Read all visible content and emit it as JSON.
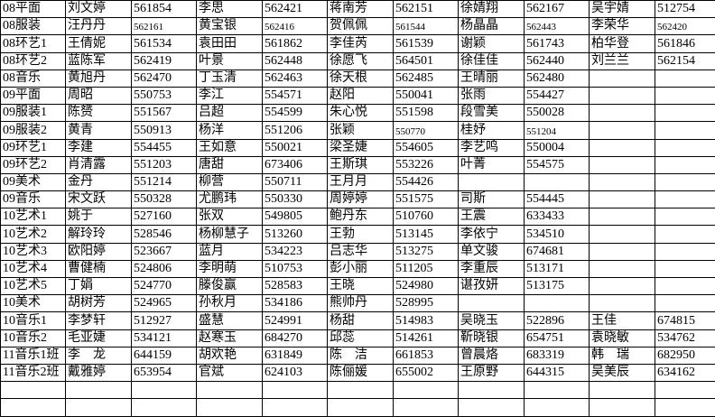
{
  "colors": {
    "grid_line": "#000000",
    "cell_background": "#ffffff",
    "text": "#000000"
  },
  "table": {
    "rows": [
      [
        "08平面",
        "刘文婷",
        "561854",
        "李思",
        "562421",
        "蒋南芳",
        "562151",
        "徐婧翔",
        "562167",
        "吴宇婧",
        "512754"
      ],
      [
        "08服装",
        "汪丹丹",
        "562161",
        "黄宝银",
        "562416",
        "贺佩佩",
        "561544",
        "杨晶晶",
        "562443",
        "李荣华",
        "562420"
      ],
      [
        "08环艺1",
        "王倩妮",
        "561534",
        "袁田田",
        "561862",
        "李佳芮",
        "561539",
        "谢颖",
        "561743",
        "柏华登",
        "561846"
      ],
      [
        "08环艺2",
        "蓝陈军",
        "562419",
        "叶景",
        "562448",
        "徐愿飞",
        "564501",
        "徐佳佳",
        "562440",
        "刘兰兰",
        "562154"
      ],
      [
        "08音乐",
        "黄旭丹",
        "562470",
        "丁玉清",
        "562463",
        "徐天根",
        "562485",
        "王晴丽",
        "562480",
        "",
        ""
      ],
      [
        "09平面",
        "周昭",
        "550753",
        "李江",
        "554571",
        "赵阳",
        "550041",
        "张雨",
        "554427",
        "",
        ""
      ],
      [
        "09服装1",
        "陈赟",
        "551567",
        "吕超",
        "554599",
        "朱心悦",
        "551598",
        "段雪美",
        "550028",
        "",
        ""
      ],
      [
        "09服装2",
        "黄青",
        "550913",
        "杨洋",
        "551206",
        "张颖",
        "550770",
        "桂妤",
        "551204",
        "",
        ""
      ],
      [
        "09环艺1",
        "李建",
        "554455",
        "王如意",
        "550021",
        "梁圣婕",
        "554605",
        "李艺鸣",
        "550004",
        "",
        ""
      ],
      [
        "09环艺2",
        "肖清露",
        "551203",
        "唐甜",
        "673406",
        "王斯琪",
        "553226",
        "叶菁",
        "554575",
        "",
        ""
      ],
      [
        "09美术",
        "金丹",
        "551214",
        "柳营",
        "550711",
        "王月月",
        "554426",
        "",
        "",
        "",
        ""
      ],
      [
        "09音乐",
        "宋文跃",
        "550328",
        "尤鹏玮",
        "550330",
        "周婷婷",
        "551575",
        "司斯",
        "554445",
        "",
        ""
      ],
      [
        "10艺术1",
        "姚于",
        "527160",
        "张双",
        "549805",
        "鲍丹东",
        "510760",
        "王震",
        "633433",
        "",
        ""
      ],
      [
        "10艺术2",
        "解玲玲",
        "528546",
        "杨柳慧子",
        "513260",
        "王勃",
        "513145",
        "李依宁",
        "534510",
        "",
        ""
      ],
      [
        "10艺术3",
        "欧阳婷",
        "523667",
        "蓝月",
        "534223",
        "吕志华",
        "513275",
        "单文骏",
        "674681",
        "",
        ""
      ],
      [
        "10艺术4",
        "曹健楠",
        "524806",
        "李明萌",
        "510753",
        "彭小丽",
        "511205",
        "李重辰",
        "513171",
        "",
        ""
      ],
      [
        "10艺术5",
        "丁娟",
        "524770",
        "滕俊赢",
        "528583",
        "王晓",
        "524980",
        "谌孜妍",
        "513175",
        "",
        ""
      ],
      [
        "10美术",
        "胡树芳",
        "524965",
        "孙秋月",
        "534186",
        "熊帅丹",
        "528995",
        "",
        "",
        "",
        ""
      ],
      [
        "10音乐1",
        "李梦轩",
        "512927",
        "盛慧",
        "524991",
        "杨甜",
        "514983",
        "吴晓玉",
        "522896",
        "王佳",
        "674815"
      ],
      [
        "10音乐2",
        "毛亚婕",
        "534121",
        "赵寒玉",
        "684270",
        "邱蕊",
        "514261",
        "靳晓银",
        "654751",
        "袁晓敏",
        "534762"
      ],
      [
        "11音乐1班",
        "李　龙",
        "644159",
        "胡欢艳",
        "631849",
        "陈　洁",
        "661853",
        "曾晨烙",
        "683319",
        "韩　瑞",
        "682950"
      ],
      [
        "11音乐2班",
        "戴雅婷",
        "653954",
        "官斌",
        "624103",
        "陈俪媛",
        "655002",
        "王原野",
        "644315",
        "吴美辰",
        "634162"
      ],
      [
        "",
        "",
        "",
        "",
        "",
        "",
        "",
        "",
        "",
        "",
        ""
      ],
      [
        "",
        "",
        "",
        "",
        "",
        "",
        "",
        "",
        "",
        "",
        ""
      ]
    ],
    "small_font_cells": [
      [
        1,
        2
      ],
      [
        1,
        4
      ],
      [
        1,
        6
      ],
      [
        1,
        8
      ],
      [
        1,
        10
      ],
      [
        7,
        6
      ],
      [
        7,
        8
      ]
    ]
  }
}
